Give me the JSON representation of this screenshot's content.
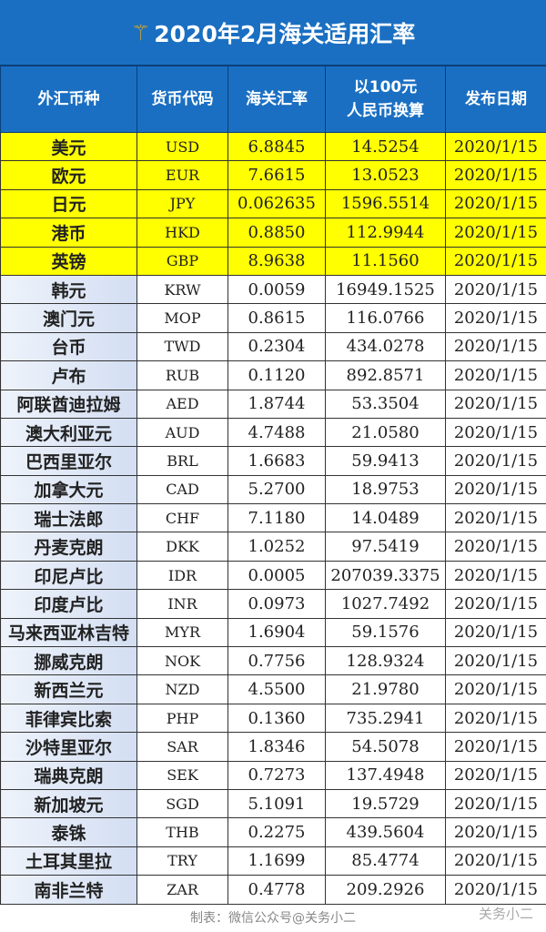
{
  "title": "2020年2月海关适用汇率",
  "headers": [
    "外汇币种",
    "货币代码",
    "海关汇率",
    "以100元\n人民币换算",
    "发布日期"
  ],
  "highlight_color": "#ffff00",
  "header_color": "#1a6fc2",
  "rows": [
    {
      "name": "美元",
      "code": "USD",
      "rate": "6.8845",
      "per100": "14.5254",
      "date": "2020/1/15",
      "highlight": true
    },
    {
      "name": "欧元",
      "code": "EUR",
      "rate": "7.6615",
      "per100": "13.0523",
      "date": "2020/1/15",
      "highlight": true
    },
    {
      "name": "日元",
      "code": "JPY",
      "rate": "0.062635",
      "per100": "1596.5514",
      "date": "2020/1/15",
      "highlight": true
    },
    {
      "name": "港币",
      "code": "HKD",
      "rate": "0.8850",
      "per100": "112.9944",
      "date": "2020/1/15",
      "highlight": true
    },
    {
      "name": "英镑",
      "code": "GBP",
      "rate": "8.9638",
      "per100": "11.1560",
      "date": "2020/1/15",
      "highlight": true
    },
    {
      "name": "韩元",
      "code": "KRW",
      "rate": "0.0059",
      "per100": "16949.1525",
      "date": "2020/1/15"
    },
    {
      "name": "澳门元",
      "code": "MOP",
      "rate": "0.8615",
      "per100": "116.0766",
      "date": "2020/1/15"
    },
    {
      "name": "台币",
      "code": "TWD",
      "rate": "0.2304",
      "per100": "434.0278",
      "date": "2020/1/15"
    },
    {
      "name": "卢布",
      "code": "RUB",
      "rate": "0.1120",
      "per100": "892.8571",
      "date": "2020/1/15"
    },
    {
      "name": "阿联酋迪拉姆",
      "code": "AED",
      "rate": "1.8744",
      "per100": "53.3504",
      "date": "2020/1/15"
    },
    {
      "name": "澳大利亚元",
      "code": "AUD",
      "rate": "4.7488",
      "per100": "21.0580",
      "date": "2020/1/15"
    },
    {
      "name": "巴西里亚尔",
      "code": "BRL",
      "rate": "1.6683",
      "per100": "59.9413",
      "date": "2020/1/15"
    },
    {
      "name": "加拿大元",
      "code": "CAD",
      "rate": "5.2700",
      "per100": "18.9753",
      "date": "2020/1/15"
    },
    {
      "name": "瑞士法郎",
      "code": "CHF",
      "rate": "7.1180",
      "per100": "14.0489",
      "date": "2020/1/15"
    },
    {
      "name": "丹麦克朗",
      "code": "DKK",
      "rate": "1.0252",
      "per100": "97.5419",
      "date": "2020/1/15"
    },
    {
      "name": "印尼卢比",
      "code": "IDR",
      "rate": "0.0005",
      "per100": "207039.3375",
      "date": "2020/1/15"
    },
    {
      "name": "印度卢比",
      "code": "INR",
      "rate": "0.0973",
      "per100": "1027.7492",
      "date": "2020/1/15"
    },
    {
      "name": "马来西亚林吉特",
      "code": "MYR",
      "rate": "1.6904",
      "per100": "59.1576",
      "date": "2020/1/15"
    },
    {
      "name": "挪威克朗",
      "code": "NOK",
      "rate": "0.7756",
      "per100": "128.9324",
      "date": "2020/1/15"
    },
    {
      "name": "新西兰元",
      "code": "NZD",
      "rate": "4.5500",
      "per100": "21.9780",
      "date": "2020/1/15"
    },
    {
      "name": "菲律宾比索",
      "code": "PHP",
      "rate": "0.1360",
      "per100": "735.2941",
      "date": "2020/1/15"
    },
    {
      "name": "沙特里亚尔",
      "code": "SAR",
      "rate": "1.8346",
      "per100": "54.5078",
      "date": "2020/1/15"
    },
    {
      "name": "瑞典克朗",
      "code": "SEK",
      "rate": "0.7273",
      "per100": "137.4948",
      "date": "2020/1/15"
    },
    {
      "name": "新加坡元",
      "code": "SGD",
      "rate": "5.1091",
      "per100": "19.5729",
      "date": "2020/1/15"
    },
    {
      "name": "泰铢",
      "code": "THB",
      "rate": "0.2275",
      "per100": "439.5604",
      "date": "2020/1/15"
    },
    {
      "name": "土耳其里拉",
      "code": "TRY",
      "rate": "1.1699",
      "per100": "85.4774",
      "date": "2020/1/15"
    },
    {
      "name": "南非兰特",
      "code": "ZAR",
      "rate": "0.4778",
      "per100": "209.2926",
      "date": "2020/1/15"
    }
  ],
  "footer": "制表：微信公众号@关务小二",
  "watermark": "关务小二"
}
